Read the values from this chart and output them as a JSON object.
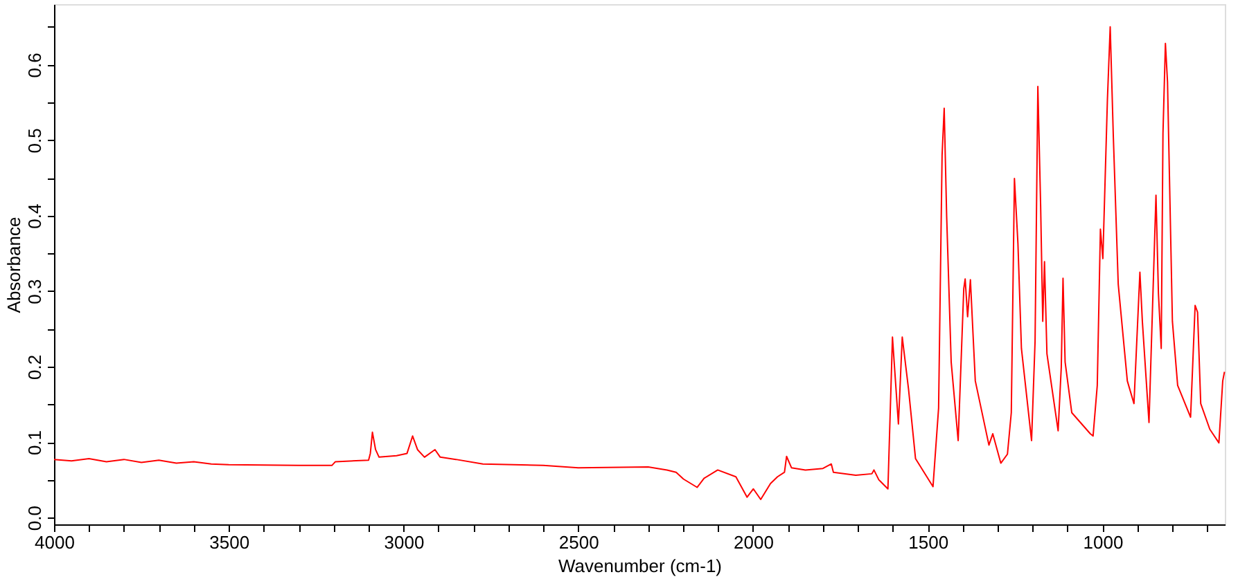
{
  "chart_data": {
    "type": "line",
    "xlabel": "Wavenumber (cm-1)",
    "ylabel": "Absorbance",
    "xlim": [
      4000,
      650
    ],
    "ylim": [
      -0.009,
      0.68
    ],
    "xticks": [
      4000,
      {
        "value": 3900,
        "label": null
      },
      {
        "value": 3800,
        "label": null
      },
      {
        "value": 3700,
        "label": null
      },
      {
        "value": 3600,
        "label": null
      },
      3500,
      {
        "value": 3400,
        "label": null
      },
      {
        "value": 3300,
        "label": null
      },
      {
        "value": 3200,
        "label": null
      },
      {
        "value": 3100,
        "label": null
      },
      3000,
      {
        "value": 2900,
        "label": null
      },
      {
        "value": 2800,
        "label": null
      },
      {
        "value": 2700,
        "label": null
      },
      {
        "value": 2600,
        "label": null
      },
      2500,
      {
        "value": 2400,
        "label": null
      },
      {
        "value": 2300,
        "label": null
      },
      {
        "value": 2200,
        "label": null
      },
      {
        "value": 2100,
        "label": null
      },
      2000,
      {
        "value": 1900,
        "label": null
      },
      {
        "value": 1800,
        "label": null
      },
      {
        "value": 1700,
        "label": null
      },
      {
        "value": 1600,
        "label": null
      },
      1500,
      {
        "value": 1400,
        "label": null
      },
      {
        "value": 1300,
        "label": null
      },
      {
        "value": 1200,
        "label": null
      },
      {
        "value": 1100,
        "label": null
      },
      1000,
      {
        "value": 900,
        "label": null
      },
      {
        "value": 800,
        "label": null
      },
      {
        "value": 700,
        "label": null
      }
    ],
    "yticks": [
      {
        "value": 0,
        "label": "0.0"
      },
      {
        "value": 0.05,
        "label": null
      },
      0.1,
      {
        "value": 0.15,
        "label": null
      },
      0.2,
      {
        "value": 0.25,
        "label": null
      },
      0.3,
      {
        "value": 0.35,
        "label": null
      },
      0.4,
      {
        "value": 0.45,
        "label": null
      },
      0.5,
      {
        "value": 0.55,
        "label": null
      },
      0.6,
      {
        "value": 0.65,
        "label": null
      }
    ],
    "grid": false,
    "marker": "none",
    "line_style": "solid",
    "series": [
      {
        "color": "#ff0000",
        "x": [
          4000,
          3950,
          3900,
          3850,
          3800,
          3750,
          3700,
          3650,
          3600,
          3550,
          3500,
          3300,
          3205,
          3195,
          3100,
          3095,
          3089,
          3080,
          3070,
          3020,
          2990,
          2974,
          2960,
          2940,
          2910,
          2895,
          2850,
          2773,
          2600,
          2500,
          2300,
          2246,
          2220,
          2199,
          2160,
          2140,
          2101,
          2049,
          2017,
          1999,
          1978,
          1950,
          1930,
          1910,
          1904,
          1890,
          1850,
          1800,
          1776,
          1770,
          1706,
          1660,
          1654,
          1640,
          1614,
          1601,
          1584,
          1573,
          1555,
          1535,
          1485,
          1469,
          1459,
          1453,
          1446,
          1433,
          1413,
          1397,
          1393,
          1386,
          1378,
          1364,
          1325,
          1314,
          1291,
          1272,
          1261,
          1252,
          1242,
          1232,
          1203,
          1193,
          1185,
          1177,
          1171,
          1166,
          1159,
          1127,
          1118,
          1113,
          1107,
          1088,
          1035,
          1027,
          1015,
          1006,
          999,
          986,
          978,
          969,
          955,
          929,
          910,
          893,
          886,
          867,
          847,
          840,
          832,
          827,
          820,
          814,
          800,
          785,
          748,
          735,
          728,
          719,
          693,
          667,
          656,
          651
        ],
        "values": [
          0.077,
          0.075,
          0.078,
          0.074,
          0.077,
          0.073,
          0.076,
          0.072,
          0.074,
          0.071,
          0.07,
          0.069,
          0.069,
          0.074,
          0.076,
          0.085,
          0.113,
          0.09,
          0.08,
          0.082,
          0.085,
          0.108,
          0.09,
          0.08,
          0.09,
          0.08,
          0.077,
          0.071,
          0.069,
          0.066,
          0.067,
          0.063,
          0.06,
          0.051,
          0.04,
          0.052,
          0.063,
          0.054,
          0.027,
          0.038,
          0.024,
          0.045,
          0.054,
          0.06,
          0.081,
          0.066,
          0.063,
          0.065,
          0.071,
          0.06,
          0.056,
          0.058,
          0.063,
          0.05,
          0.038,
          0.239,
          0.124,
          0.239,
          0.17,
          0.078,
          0.041,
          0.145,
          0.48,
          0.542,
          0.4,
          0.206,
          0.102,
          0.303,
          0.316,
          0.266,
          0.315,
          0.181,
          0.096,
          0.111,
          0.072,
          0.084,
          0.139,
          0.449,
          0.363,
          0.224,
          0.102,
          0.233,
          0.571,
          0.412,
          0.26,
          0.339,
          0.217,
          0.115,
          0.199,
          0.317,
          0.206,
          0.139,
          0.111,
          0.108,
          0.175,
          0.382,
          0.343,
          0.553,
          0.65,
          0.504,
          0.309,
          0.181,
          0.151,
          0.325,
          0.26,
          0.126,
          0.427,
          0.297,
          0.224,
          0.509,
          0.628,
          0.577,
          0.26,
          0.175,
          0.133,
          0.281,
          0.272,
          0.151,
          0.117,
          0.099,
          0.181,
          0.193
        ]
      }
    ]
  }
}
